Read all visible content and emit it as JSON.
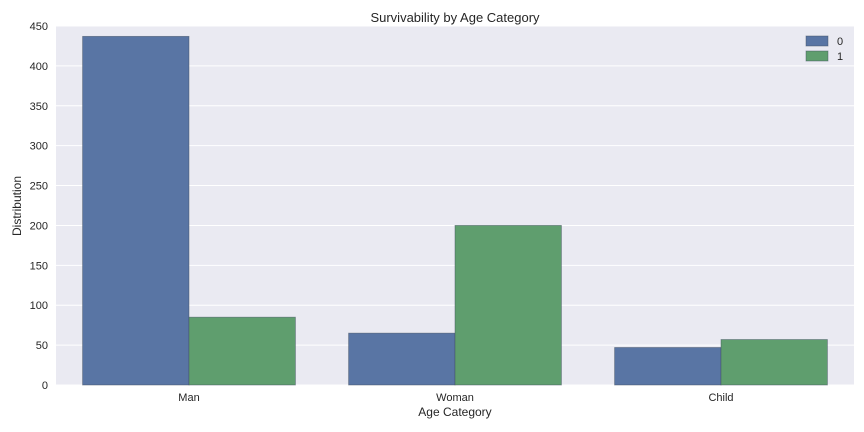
{
  "chart_data": {
    "type": "bar",
    "title": "Survivability by Age Category",
    "xlabel": "Age Category",
    "ylabel": "Distribution",
    "categories": [
      "Man",
      "Woman",
      "Child"
    ],
    "series": [
      {
        "name": "0",
        "values": [
          437,
          65,
          47
        ],
        "color": "#5975a4"
      },
      {
        "name": "1",
        "values": [
          85,
          200,
          57
        ],
        "color": "#5f9e6e"
      }
    ],
    "ylim": [
      0,
      450
    ],
    "yticks": [
      0,
      50,
      100,
      150,
      200,
      250,
      300,
      350,
      400,
      450
    ],
    "grid": true,
    "legend": "top-right",
    "background": "#eaeaf2"
  }
}
